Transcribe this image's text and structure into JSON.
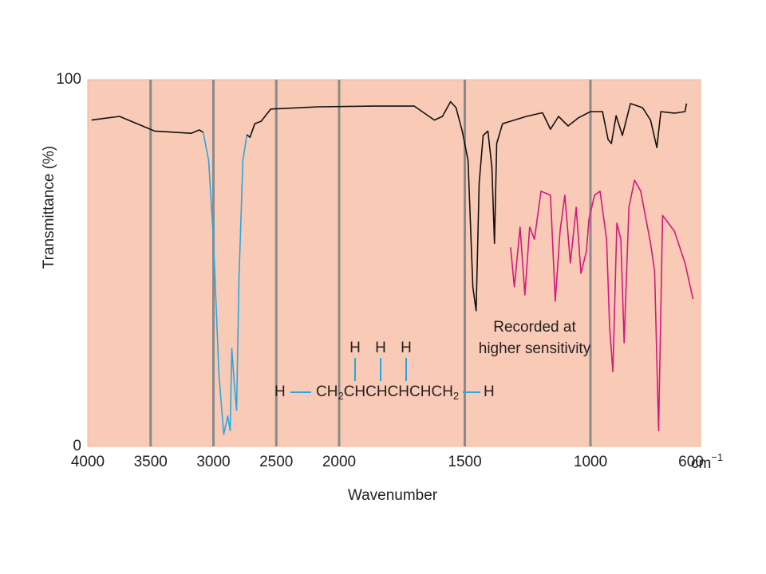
{
  "chart_data": {
    "type": "line",
    "y_label": "Transmittance (%)",
    "x_label": "Wavenumber",
    "x_unit": [
      "cm",
      "−1"
    ],
    "xlim": [
      4000,
      562
    ],
    "xscale_break": 2000,
    "xticks": [
      4000,
      3500,
      3000,
      2500,
      2000,
      1500,
      1000,
      600
    ],
    "ylim": [
      0,
      100
    ],
    "yticks": [
      0,
      100
    ],
    "grid": true,
    "background": "#f9cbb7",
    "annotation": [
      "Recorded at",
      "higher sensitivity"
    ],
    "annotation_color": "#d4187c",
    "structure": {
      "top": [
        "H",
        "H",
        "H"
      ],
      "left": "H",
      "chain": [
        "CH",
        "2",
        "CHCHCHCH",
        "2"
      ],
      "right": "H",
      "bond_color": "#2aa6df"
    },
    "series": [
      {
        "color": "#111111",
        "x": [
          3970,
          3747,
          3468,
          3177,
          3114,
          3082
        ],
        "values": [
          89,
          90,
          86,
          85.4,
          86.3,
          85.7
        ]
      },
      {
        "color": "#2aa6df",
        "x": [
          3082,
          3038,
          3000,
          2956,
          2918,
          2886,
          2867,
          2854,
          2835,
          2816,
          2797,
          2766,
          2734
        ],
        "values": [
          85.7,
          78,
          56.5,
          19.6,
          3.3,
          8.3,
          4.3,
          26.7,
          17.4,
          9.8,
          45.7,
          78,
          85
        ]
      },
      {
        "color": "#111111",
        "x": [
          2734,
          2709,
          2671,
          2620,
          2544,
          2165,
          1860,
          1701,
          1621,
          1589,
          1557,
          1535,
          1510,
          1487,
          1468,
          1455,
          1443,
          1427,
          1408,
          1392,
          1382,
          1373,
          1350,
          1303,
          1255,
          1191,
          1159,
          1127,
          1089,
          1048,
          1000,
          952,
          930,
          917,
          898,
          873,
          841,
          793,
          761,
          736,
          720,
          666,
          624,
          618
        ],
        "values": [
          85,
          84.3,
          88,
          88.7,
          92,
          92.6,
          92.8,
          92.8,
          89,
          90,
          94,
          92.4,
          85.9,
          78,
          43.5,
          37,
          71.7,
          84.8,
          86,
          76,
          55.4,
          82.6,
          88,
          89,
          90,
          91,
          86.5,
          90,
          87.4,
          89.6,
          91.3,
          91.3,
          83.7,
          82.6,
          90.2,
          84.8,
          93.5,
          92.4,
          89,
          81.5,
          91.3,
          90.9,
          91.3,
          93.5
        ]
      },
      {
        "color": "#d4187c",
        "x": [
          1318,
          1303,
          1280,
          1261,
          1242,
          1223,
          1197,
          1159,
          1140,
          1121,
          1102,
          1080,
          1057,
          1038,
          1016,
          1006,
          984,
          962,
          936,
          924,
          911,
          895,
          879,
          866,
          847,
          825,
          800,
          761,
          745,
          729,
          713,
          666,
          624,
          592
        ],
        "values": [
          54.3,
          43.5,
          59.8,
          41.3,
          59.8,
          56.5,
          69.6,
          68.5,
          39.6,
          58.7,
          68.5,
          50,
          65.2,
          47.2,
          53.3,
          62,
          68.5,
          69.6,
          56.5,
          32.6,
          20.4,
          60.9,
          56.5,
          28.3,
          65.2,
          72.6,
          69.6,
          55.4,
          47.8,
          4.3,
          63,
          58.7,
          50,
          40.2
        ]
      }
    ]
  }
}
